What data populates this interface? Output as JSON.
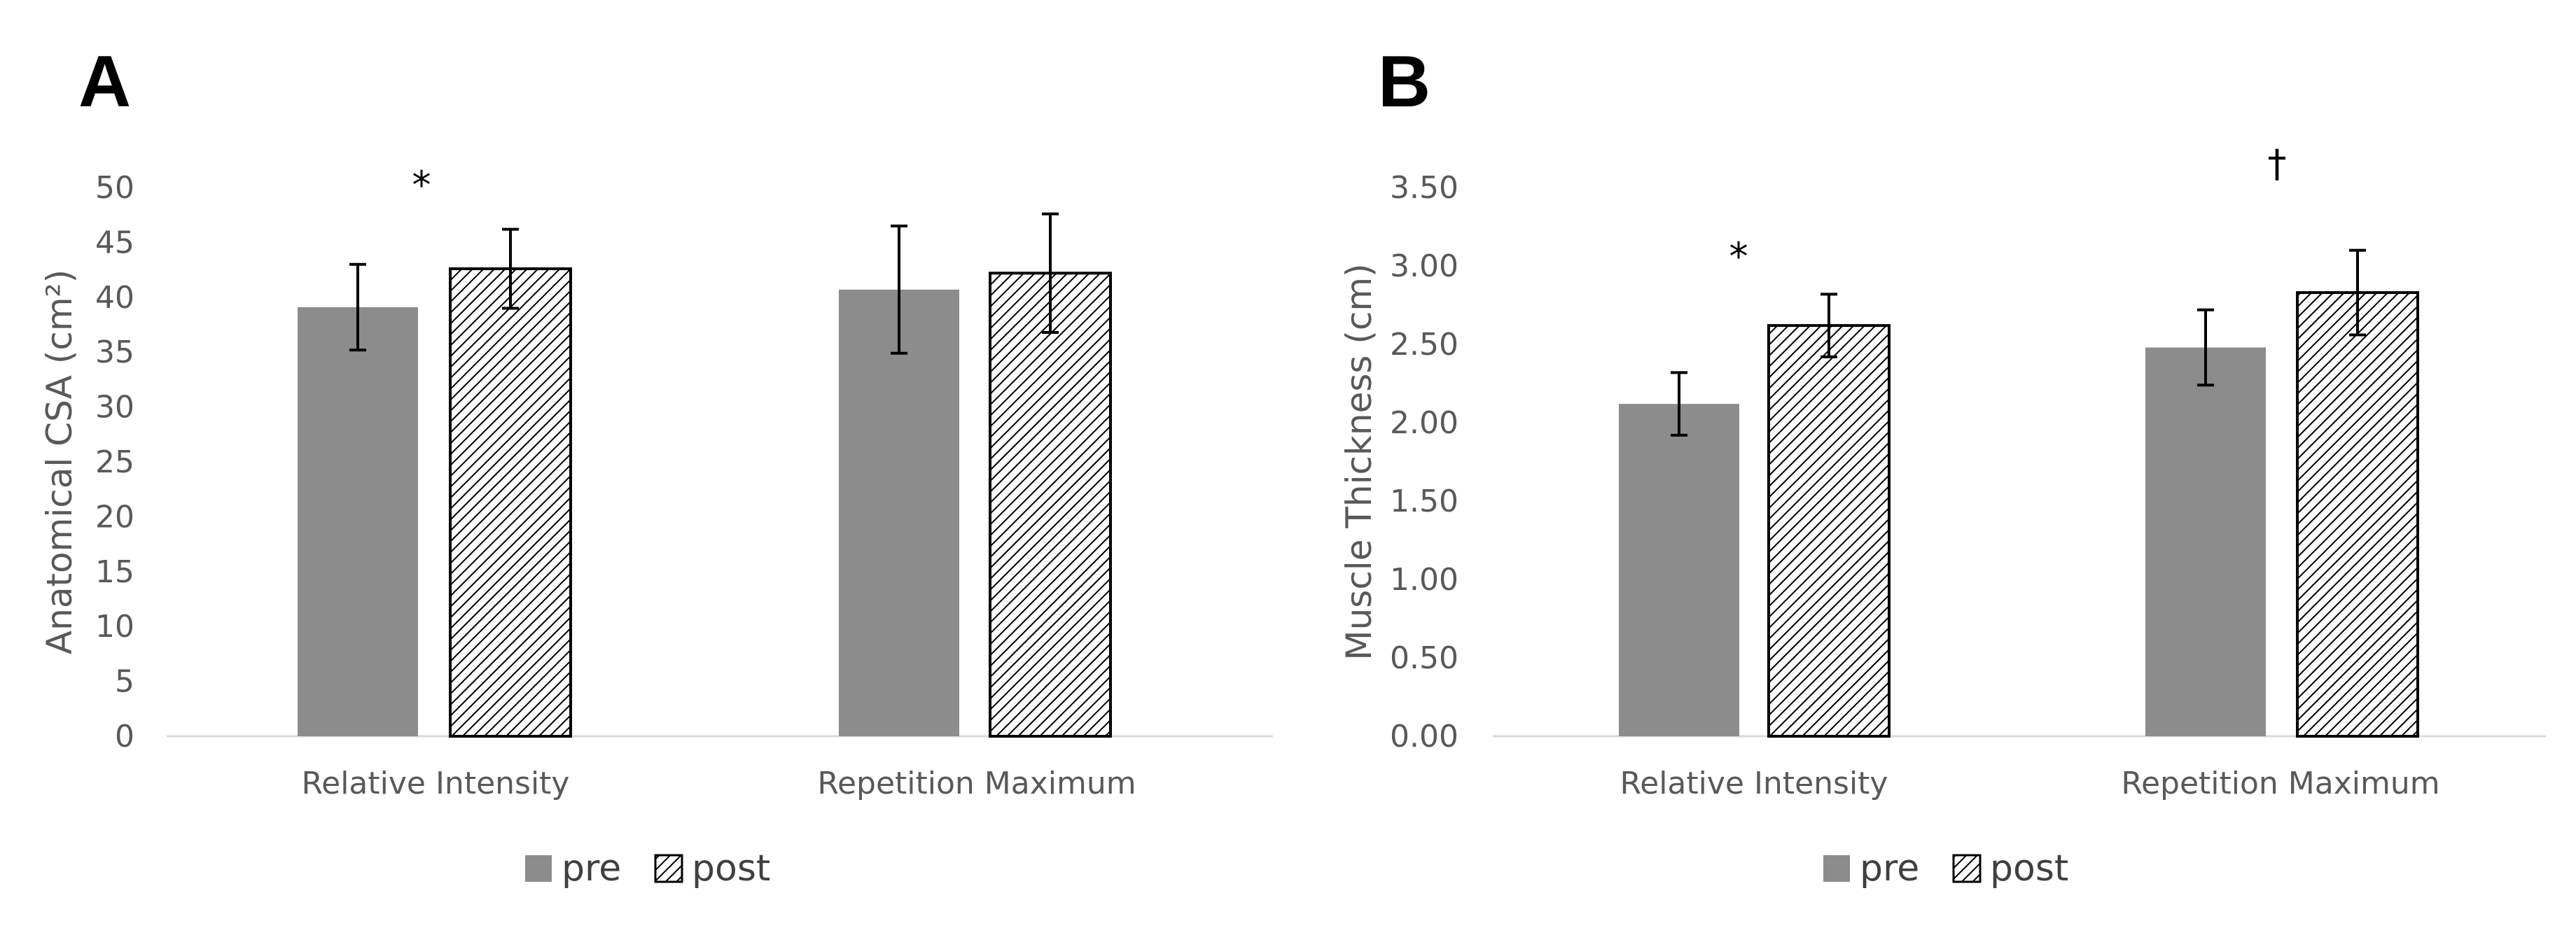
{
  "colors": {
    "pre": "#8c8c8c",
    "post_hatch": "#000000",
    "axis": "#d9d9d9",
    "text": "#595959"
  },
  "legend": {
    "pre_label": "pre",
    "post_label": "post"
  },
  "chart_data": [
    {
      "type": "bar",
      "panel": "A",
      "title": "",
      "xlabel": "",
      "ylabel": "Anatomical CSA (cm²)",
      "ylim": [
        0,
        50
      ],
      "yticks": [
        "0",
        "5",
        "10",
        "15",
        "20",
        "25",
        "30",
        "35",
        "40",
        "45",
        "50"
      ],
      "categories": [
        "Relative Intensity",
        "Repetition Maximum"
      ],
      "series": [
        {
          "name": "pre",
          "values": [
            39.1,
            40.7
          ],
          "errors": [
            3.9,
            5.8
          ]
        },
        {
          "name": "post",
          "values": [
            42.6,
            42.2
          ],
          "errors": [
            3.6,
            5.4
          ]
        }
      ],
      "annotations": [
        {
          "text": "*",
          "category": 0,
          "y": 51.2
        }
      ],
      "legend": "bottom"
    },
    {
      "type": "bar",
      "panel": "B",
      "title": "",
      "xlabel": "",
      "ylabel": "Muscle Thickness (cm)",
      "ylim": [
        0,
        3.5
      ],
      "yticks": [
        "0.00",
        "0.50",
        "1.00",
        "1.50",
        "2.00",
        "2.50",
        "3.00",
        "3.50"
      ],
      "categories": [
        "Relative Intensity",
        "Repetition Maximum"
      ],
      "series": [
        {
          "name": "pre",
          "values": [
            2.12,
            2.48
          ],
          "errors": [
            0.2,
            0.24
          ]
        },
        {
          "name": "post",
          "values": [
            2.62,
            2.83
          ],
          "errors": [
            0.2,
            0.27
          ]
        }
      ],
      "annotations": [
        {
          "text": "*",
          "category": 0,
          "y": 3.13
        },
        {
          "text": "†",
          "category": 1,
          "y": 3.72
        }
      ],
      "legend": "bottom"
    }
  ]
}
